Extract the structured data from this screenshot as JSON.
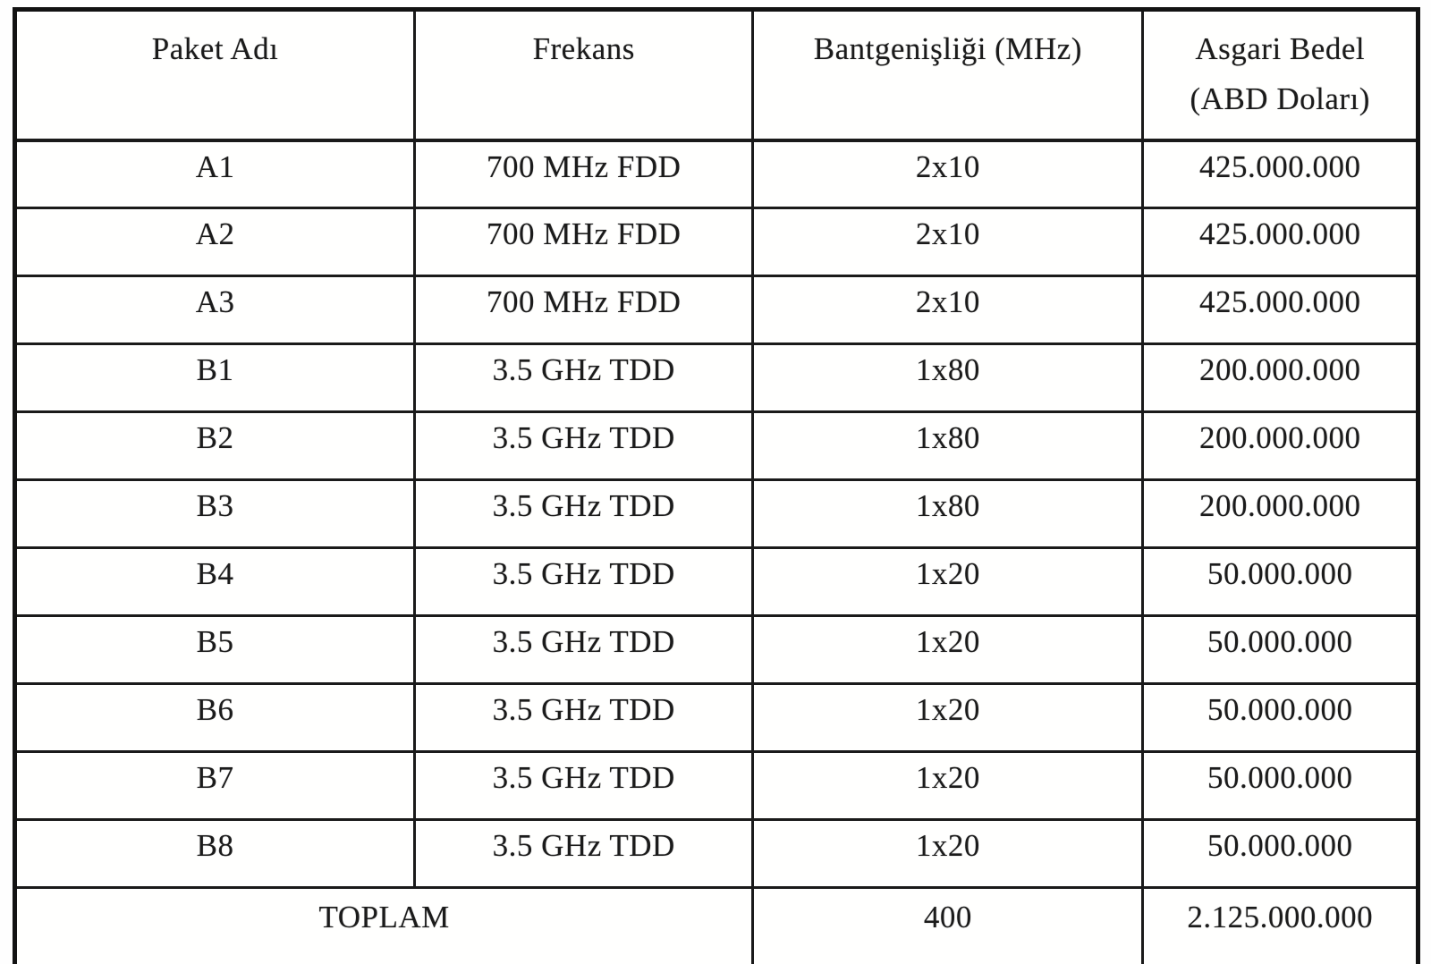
{
  "document": {
    "language": "tr",
    "kind": "scanned-table"
  },
  "colors": {
    "paper": "#fefefe",
    "ink": "#1b1b1b",
    "border": "#1a1a1a"
  },
  "table": {
    "columns": [
      {
        "key": "name",
        "label": "Paket Adı"
      },
      {
        "key": "frequency",
        "label": "Frekans"
      },
      {
        "key": "bandwidth",
        "label": "Bantgenişliği (MHz)"
      },
      {
        "key": "min_price",
        "label_line1": "Asgari Bedel",
        "label_line2": "(ABD Doları)"
      }
    ],
    "rows": [
      {
        "name": "A1",
        "frequency": "700 MHz FDD",
        "bandwidth": "2x10",
        "min_price": "425.000.000"
      },
      {
        "name": "A2",
        "frequency": "700 MHz FDD",
        "bandwidth": "2x10",
        "min_price": "425.000.000"
      },
      {
        "name": "A3",
        "frequency": "700 MHz FDD",
        "bandwidth": "2x10",
        "min_price": "425.000.000"
      },
      {
        "name": "B1",
        "frequency": "3.5 GHz TDD",
        "bandwidth": "1x80",
        "min_price": "200.000.000"
      },
      {
        "name": "B2",
        "frequency": "3.5 GHz TDD",
        "bandwidth": "1x80",
        "min_price": "200.000.000"
      },
      {
        "name": "B3",
        "frequency": "3.5 GHz TDD",
        "bandwidth": "1x80",
        "min_price": "200.000.000"
      },
      {
        "name": "B4",
        "frequency": "3.5 GHz TDD",
        "bandwidth": "1x20",
        "min_price": "50.000.000"
      },
      {
        "name": "B5",
        "frequency": "3.5 GHz TDD",
        "bandwidth": "1x20",
        "min_price": "50.000.000"
      },
      {
        "name": "B6",
        "frequency": "3.5 GHz TDD",
        "bandwidth": "1x20",
        "min_price": "50.000.000"
      },
      {
        "name": "B7",
        "frequency": "3.5 GHz TDD",
        "bandwidth": "1x20",
        "min_price": "50.000.000"
      },
      {
        "name": "B8",
        "frequency": "3.5 GHz TDD",
        "bandwidth": "1x20",
        "min_price": "50.000.000"
      }
    ],
    "total_row": {
      "label": "TOPLAM",
      "bandwidth": "400",
      "min_price": "2.125.000.000"
    }
  }
}
